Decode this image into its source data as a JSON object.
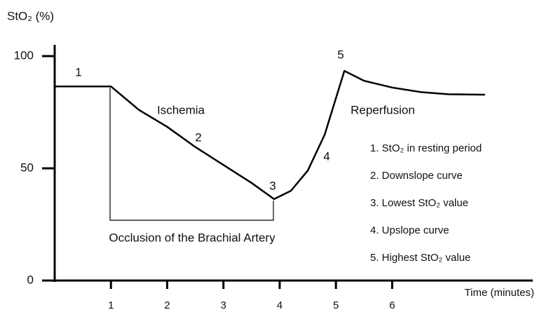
{
  "chart_data": {
    "type": "line",
    "y_label": "StO₂ (%)",
    "x_label": "Time (minutes)",
    "x": [
      0,
      1,
      1.5,
      2,
      2.5,
      3,
      3.5,
      3.9,
      4.2,
      4.5,
      4.8,
      5.15,
      5.5,
      6,
      6.5,
      7,
      7.65
    ],
    "values": [
      86.5,
      86.5,
      76,
      68.5,
      59.5,
      51.5,
      43.5,
      36.3,
      40,
      49,
      65,
      93.4,
      89,
      86,
      84,
      83,
      82.8
    ],
    "color": "#000000",
    "xlim": [
      0,
      8.5
    ],
    "xticks": [
      1,
      2,
      3,
      4,
      5,
      6
    ],
    "ylim": [
      0,
      105
    ],
    "yticks": [
      0,
      50,
      100
    ],
    "annotations": [
      "1",
      "2",
      "3",
      "4",
      "5",
      "Ischemia",
      "Reperfusion"
    ],
    "bracket_label": "Occlusion of the Brachial Artery",
    "notes": [
      "1. StO₂ in resting period",
      "2. Downslope curve",
      "3. Lowest StO₂ value",
      "4. Upslope curve",
      "5. Highest StO₂ value"
    ]
  }
}
